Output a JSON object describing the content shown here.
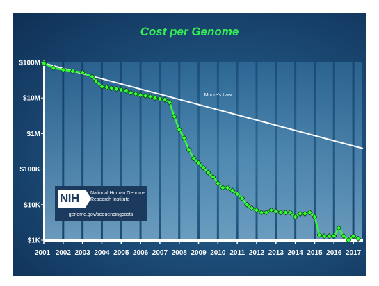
{
  "chart_data": {
    "type": "line",
    "title": "Cost per Genome",
    "xlabel": "",
    "ylabel": "",
    "y_scale": "log",
    "ylim": [
      1000,
      100000000
    ],
    "y_ticks": [
      {
        "value": 100000000,
        "label": "$100M"
      },
      {
        "value": 10000000,
        "label": "$10M"
      },
      {
        "value": 1000000,
        "label": "$1M"
      },
      {
        "value": 100000,
        "label": "$100K"
      },
      {
        "value": 10000,
        "label": "$10K"
      },
      {
        "value": 1000,
        "label": "$1K"
      }
    ],
    "xlim": [
      2001.0,
      2017.5
    ],
    "x_tick_labels": [
      "2001",
      "2002",
      "2003",
      "2004",
      "2005",
      "2006",
      "2007",
      "2008",
      "2009",
      "2010",
      "2011",
      "2012",
      "2013",
      "2014",
      "2015",
      "2016",
      "2017"
    ],
    "x_tick_values": [
      2001,
      2002,
      2003,
      2004,
      2005,
      2006,
      2007,
      2008,
      2009,
      2010,
      2011,
      2012,
      2013,
      2014,
      2015,
      2016,
      2017
    ],
    "series": [
      {
        "name": "",
        "color": "#33ff33",
        "x": [
          2001.0,
          2001.5,
          2002.0,
          2002.5,
          2003.0,
          2003.5,
          2003.7,
          2004.0,
          2004.25,
          2004.5,
          2004.75,
          2005.0,
          2005.25,
          2005.5,
          2005.75,
          2006.0,
          2006.25,
          2006.5,
          2006.75,
          2007.0,
          2007.25,
          2007.5,
          2007.75,
          2008.0,
          2008.25,
          2008.5,
          2008.75,
          2009.0,
          2009.25,
          2009.5,
          2009.75,
          2010.0,
          2010.25,
          2010.5,
          2010.75,
          2011.0,
          2011.25,
          2011.5,
          2011.75,
          2012.0,
          2012.25,
          2012.5,
          2012.75,
          2013.0,
          2013.25,
          2013.5,
          2013.75,
          2014.0,
          2014.25,
          2014.5,
          2014.75,
          2015.0,
          2015.25,
          2015.5,
          2015.75,
          2016.0,
          2016.25,
          2016.5,
          2016.75,
          2017.0,
          2017.25
        ],
        "y": [
          95000000,
          70000000,
          62000000,
          57000000,
          52000000,
          40000000,
          30000000,
          21000000,
          20000000,
          19000000,
          18000000,
          17000000,
          16000000,
          14000000,
          13000000,
          12000000,
          11500000,
          11000000,
          10000000,
          9500000,
          9000000,
          7500000,
          3000000,
          1300000,
          750000,
          350000,
          200000,
          150000,
          110000,
          80000,
          60000,
          40000,
          30000,
          30000,
          25000,
          20000,
          15000,
          10000,
          8000,
          7000,
          6000,
          6000,
          7000,
          6500,
          6000,
          6000,
          6000,
          4500,
          5500,
          5500,
          6000,
          4500,
          1400,
          1300,
          1300,
          1300,
          2200,
          1300,
          1000,
          1300,
          1100
        ]
      },
      {
        "name": "Moore's Law",
        "color": "#ffffff",
        "x": [
          2001.0,
          2017.5
        ],
        "y": [
          95000000,
          380000
        ]
      }
    ],
    "annotations": [
      {
        "text": "Moore's Law",
        "x": 2010.0,
        "y": 11000000
      }
    ],
    "grid": false,
    "legend": "none"
  },
  "nih": {
    "logo_text": "NIH",
    "name_line1": "National Human Genome",
    "name_line2": "Research Institute",
    "url": "genome.gov/sequencingcosts"
  }
}
